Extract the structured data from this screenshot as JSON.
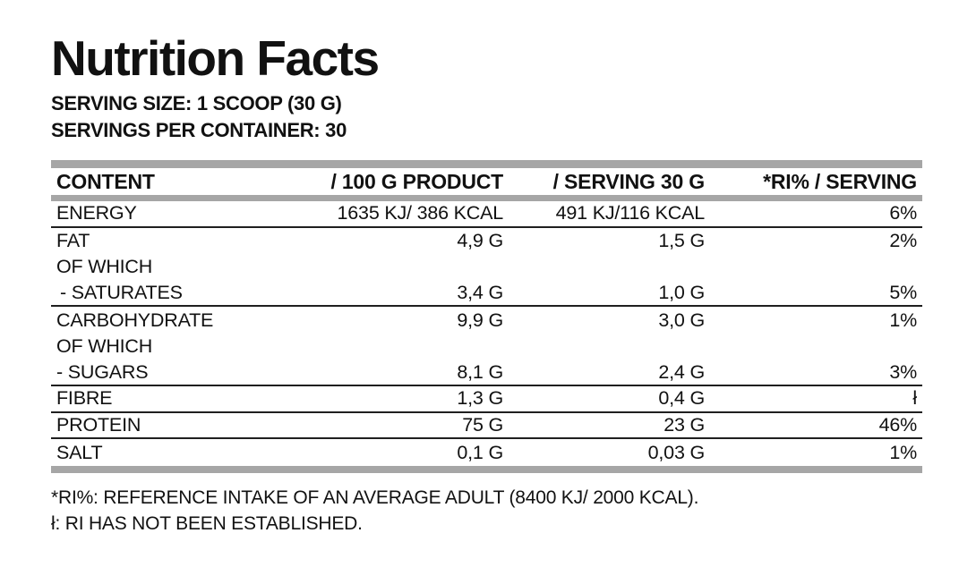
{
  "label": {
    "title": "Nutrition Facts",
    "serving_size": "SERVING SIZE: 1 SCOOP (30 G)",
    "servings_per_container": "SERVINGS PER CONTAINER: 30"
  },
  "table": {
    "headers": [
      "CONTENT",
      "/ 100 G PRODUCT",
      "/ SERVING 30 G",
      "*RI% / SERVING"
    ],
    "rows": [
      {
        "content": "ENERGY",
        "per_100g": "1635 KJ/ 386 KCAL",
        "per_serving": "491 KJ/116 KCAL",
        "ri": "6%"
      },
      {
        "content": "FAT",
        "per_100g": "4,9 G",
        "per_serving": "1,5 G",
        "ri": "2%"
      },
      {
        "content": "OF WHICH",
        "per_100g": "",
        "per_serving": "",
        "ri": ""
      },
      {
        "content": "- SATURATES",
        "per_100g": "3,4 G",
        "per_serving": "1,0 G",
        "ri": "5%"
      },
      {
        "content": "CARBOHYDRATE",
        "per_100g": "9,9 G",
        "per_serving": "3,0 G",
        "ri": "1%"
      },
      {
        "content": "OF WHICH",
        "per_100g": "",
        "per_serving": "",
        "ri": ""
      },
      {
        "content": "- SUGARS",
        "per_100g": "8,1 G",
        "per_serving": "2,4 G",
        "ri": "3%"
      },
      {
        "content": "FIBRE",
        "per_100g": "1,3 G",
        "per_serving": "0,4 G",
        "ri": "ł"
      },
      {
        "content": "PROTEIN",
        "per_100g": "75 G",
        "per_serving": "23 G",
        "ri": "46%"
      },
      {
        "content": "SALT",
        "per_100g": "0,1 G",
        "per_serving": "0,03 G",
        "ri": "1%"
      }
    ]
  },
  "footnotes": {
    "ri_note": "*RI%: REFERENCE INTAKE OF AN AVERAGE ADULT (8400 KJ/ 2000 KCAL).",
    "not_established_note": "ł: RI HAS NOT BEEN ESTABLISHED."
  },
  "colors": {
    "bar_gray": "#a6a6a6",
    "text_black": "#111111"
  }
}
